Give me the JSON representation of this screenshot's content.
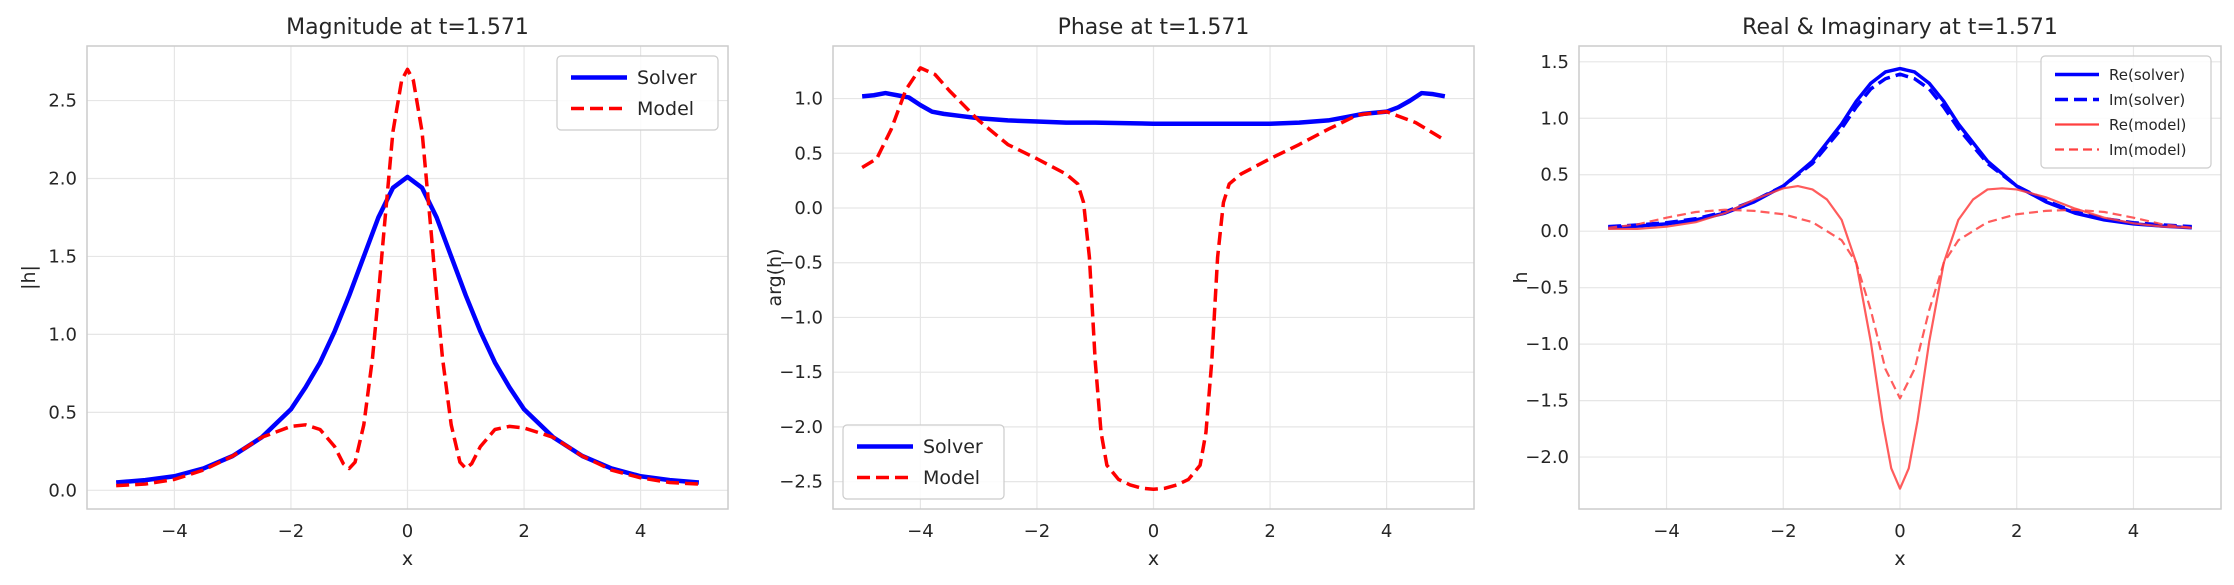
{
  "chart_data": [
    {
      "type": "line",
      "title": "Magnitude at t=1.571",
      "xlabel": "x",
      "ylabel": "|h|",
      "xlim": [
        -5.5,
        5.5
      ],
      "ylim": [
        -0.12,
        2.85
      ],
      "xticks": [
        -4,
        -2,
        0,
        2,
        4
      ],
      "yticks": [
        0.0,
        0.5,
        1.0,
        1.5,
        2.0,
        2.5
      ],
      "xtick_labels": [
        "−4",
        "−2",
        "0",
        "2",
        "4"
      ],
      "ytick_labels": [
        "0.0",
        "0.5",
        "1.0",
        "1.5",
        "2.0",
        "2.5"
      ],
      "grid": true,
      "legend_position": "top-right",
      "series": [
        {
          "name": "Solver",
          "color": "#0000ff",
          "style": "solid",
          "width": 4.5,
          "x": [
            -5,
            -4.5,
            -4,
            -3.5,
            -3,
            -2.5,
            -2,
            -1.75,
            -1.5,
            -1.25,
            -1,
            -0.75,
            -0.5,
            -0.25,
            0,
            0.25,
            0.5,
            0.75,
            1,
            1.25,
            1.5,
            1.75,
            2,
            2.5,
            3,
            3.5,
            4,
            4.5,
            5
          ],
          "y": [
            0.05,
            0.065,
            0.09,
            0.14,
            0.22,
            0.34,
            0.52,
            0.66,
            0.82,
            1.02,
            1.25,
            1.5,
            1.75,
            1.94,
            2.01,
            1.94,
            1.75,
            1.5,
            1.25,
            1.02,
            0.82,
            0.66,
            0.52,
            0.34,
            0.22,
            0.14,
            0.09,
            0.065,
            0.05
          ]
        },
        {
          "name": "Model",
          "color": "#ff0000",
          "style": "dashed",
          "width": 3.5,
          "x": [
            -5,
            -4.5,
            -4,
            -3.5,
            -3,
            -2.5,
            -2,
            -1.75,
            -1.5,
            -1.25,
            -1.1,
            -1,
            -0.9,
            -0.75,
            -0.6,
            -0.5,
            -0.4,
            -0.25,
            -0.1,
            0,
            0.1,
            0.25,
            0.4,
            0.5,
            0.6,
            0.75,
            0.9,
            1,
            1.1,
            1.25,
            1.5,
            1.75,
            2,
            2.5,
            3,
            3.5,
            4,
            4.5,
            5
          ],
          "y": [
            0.03,
            0.04,
            0.07,
            0.13,
            0.22,
            0.34,
            0.41,
            0.42,
            0.39,
            0.28,
            0.17,
            0.14,
            0.18,
            0.42,
            0.85,
            1.25,
            1.68,
            2.3,
            2.63,
            2.7,
            2.63,
            2.3,
            1.68,
            1.25,
            0.85,
            0.42,
            0.18,
            0.14,
            0.17,
            0.28,
            0.39,
            0.41,
            0.4,
            0.34,
            0.22,
            0.13,
            0.08,
            0.05,
            0.04
          ]
        }
      ]
    },
    {
      "type": "line",
      "title": "Phase at t=1.571",
      "xlabel": "x",
      "ylabel": "arg(h)",
      "xlim": [
        -5.5,
        5.5
      ],
      "ylim": [
        -2.75,
        1.48
      ],
      "xticks": [
        -4,
        -2,
        0,
        2,
        4
      ],
      "yticks": [
        -2.5,
        -2.0,
        -1.5,
        -1.0,
        -0.5,
        0.0,
        0.5,
        1.0
      ],
      "xtick_labels": [
        "−4",
        "−2",
        "0",
        "2",
        "4"
      ],
      "ytick_labels": [
        "−2.5",
        "−2.0",
        "−1.5",
        "−1.0",
        "−0.5",
        "0.0",
        "0.5",
        "1.0"
      ],
      "grid": true,
      "legend_position": "bottom-left",
      "series": [
        {
          "name": "Solver",
          "color": "#0000ff",
          "style": "solid",
          "width": 4.5,
          "x": [
            -5,
            -4.8,
            -4.6,
            -4.4,
            -4.2,
            -4,
            -3.8,
            -3.6,
            -3.3,
            -3,
            -2.5,
            -2,
            -1.5,
            -1,
            0,
            1,
            1.5,
            2,
            2.5,
            3,
            3.3,
            3.6,
            3.8,
            4,
            4.2,
            4.4,
            4.6,
            4.8,
            5
          ],
          "y": [
            1.02,
            1.03,
            1.05,
            1.03,
            1.01,
            0.94,
            0.88,
            0.86,
            0.84,
            0.82,
            0.8,
            0.79,
            0.78,
            0.78,
            0.77,
            0.77,
            0.77,
            0.77,
            0.78,
            0.8,
            0.83,
            0.86,
            0.87,
            0.88,
            0.92,
            0.98,
            1.05,
            1.04,
            1.02
          ]
        },
        {
          "name": "Model",
          "color": "#ff0000",
          "style": "dashed",
          "width": 3.5,
          "x": [
            -5,
            -4.75,
            -4.5,
            -4.25,
            -4,
            -3.75,
            -3.5,
            -3,
            -2.5,
            -2,
            -1.5,
            -1.3,
            -1.2,
            -1.1,
            -1,
            -0.9,
            -0.8,
            -0.6,
            -0.4,
            -0.2,
            0,
            0.2,
            0.4,
            0.6,
            0.8,
            0.9,
            1,
            1.1,
            1.2,
            1.3,
            1.5,
            2,
            2.5,
            3,
            3.5,
            4,
            4.5,
            5
          ],
          "y": [
            0.37,
            0.45,
            0.72,
            1.08,
            1.28,
            1.22,
            1.07,
            0.8,
            0.58,
            0.45,
            0.31,
            0.22,
            0.05,
            -0.45,
            -1.4,
            -2.05,
            -2.35,
            -2.48,
            -2.53,
            -2.56,
            -2.57,
            -2.56,
            -2.53,
            -2.48,
            -2.35,
            -2.05,
            -1.4,
            -0.45,
            0.05,
            0.22,
            0.31,
            0.45,
            0.58,
            0.72,
            0.85,
            0.88,
            0.78,
            0.62
          ]
        }
      ]
    },
    {
      "type": "line",
      "title": "Real & Imaginary at t=1.571",
      "xlabel": "x",
      "ylabel": "h",
      "xlim": [
        -5.5,
        5.5
      ],
      "ylim": [
        -2.46,
        1.64
      ],
      "xticks": [
        -4,
        -2,
        0,
        2,
        4
      ],
      "yticks": [
        -2.0,
        -1.5,
        -1.0,
        -0.5,
        0.0,
        0.5,
        1.0,
        1.5
      ],
      "xtick_labels": [
        "−4",
        "−2",
        "0",
        "2",
        "4"
      ],
      "ytick_labels": [
        "−2.0",
        "−1.5",
        "−1.0",
        "−0.5",
        "0.0",
        "0.5",
        "1.0",
        "1.5"
      ],
      "grid": true,
      "legend_position": "top-right",
      "series": [
        {
          "name": "Re(solver)",
          "color": "#0000ff",
          "style": "solid",
          "width": 3.5,
          "x": [
            -5,
            -4.5,
            -4,
            -3.5,
            -3,
            -2.5,
            -2,
            -1.5,
            -1,
            -0.75,
            -0.5,
            -0.25,
            0,
            0.25,
            0.5,
            0.75,
            1,
            1.5,
            2,
            2.5,
            3,
            3.5,
            4,
            4.5,
            5
          ],
          "y": [
            0.03,
            0.045,
            0.065,
            0.1,
            0.16,
            0.26,
            0.4,
            0.62,
            0.95,
            1.15,
            1.31,
            1.41,
            1.44,
            1.41,
            1.31,
            1.15,
            0.95,
            0.62,
            0.4,
            0.26,
            0.16,
            0.1,
            0.065,
            0.045,
            0.03
          ]
        },
        {
          "name": "Im(solver)",
          "color": "#0000ff",
          "style": "dashed",
          "width": 3.5,
          "x": [
            -5,
            -4.5,
            -4,
            -3.5,
            -3,
            -2.5,
            -2,
            -1.5,
            -1,
            -0.75,
            -0.5,
            -0.25,
            0,
            0.25,
            0.5,
            0.75,
            1,
            1.5,
            2,
            2.5,
            3,
            3.5,
            4,
            4.5,
            5
          ],
          "y": [
            0.04,
            0.055,
            0.075,
            0.11,
            0.17,
            0.27,
            0.4,
            0.6,
            0.91,
            1.1,
            1.26,
            1.35,
            1.39,
            1.35,
            1.26,
            1.1,
            0.91,
            0.6,
            0.4,
            0.27,
            0.17,
            0.11,
            0.075,
            0.055,
            0.04
          ]
        },
        {
          "name": "Re(model)",
          "color": "#ff4040",
          "style": "solid",
          "width": 2.2,
          "x": [
            -5,
            -4.5,
            -4,
            -3.5,
            -3,
            -2.5,
            -2,
            -1.75,
            -1.5,
            -1.25,
            -1,
            -0.75,
            -0.5,
            -0.3,
            -0.15,
            0,
            0.15,
            0.3,
            0.5,
            0.75,
            1,
            1.25,
            1.5,
            1.75,
            2,
            2.5,
            3,
            3.5,
            4,
            4.5,
            5
          ],
          "y": [
            0.02,
            0.02,
            0.04,
            0.08,
            0.16,
            0.28,
            0.38,
            0.4,
            0.37,
            0.28,
            0.1,
            -0.28,
            -0.98,
            -1.68,
            -2.1,
            -2.28,
            -2.1,
            -1.68,
            -0.98,
            -0.28,
            0.1,
            0.28,
            0.37,
            0.38,
            0.37,
            0.3,
            0.2,
            0.12,
            0.07,
            0.04,
            0.03
          ]
        },
        {
          "name": "Im(model)",
          "color": "#ff4040",
          "style": "dashed",
          "width": 2.2,
          "x": [
            -5,
            -4.5,
            -4,
            -3.5,
            -3,
            -2.5,
            -2,
            -1.5,
            -1,
            -0.75,
            -0.5,
            -0.25,
            0,
            0.25,
            0.5,
            0.75,
            1,
            1.5,
            2,
            2.5,
            3,
            3.5,
            4,
            4.5,
            5
          ],
          "y": [
            0.03,
            0.06,
            0.12,
            0.17,
            0.19,
            0.18,
            0.15,
            0.08,
            -0.08,
            -0.28,
            -0.7,
            -1.22,
            -1.48,
            -1.22,
            -0.7,
            -0.28,
            -0.08,
            0.08,
            0.15,
            0.18,
            0.19,
            0.17,
            0.12,
            0.06,
            0.03
          ]
        }
      ]
    }
  ]
}
